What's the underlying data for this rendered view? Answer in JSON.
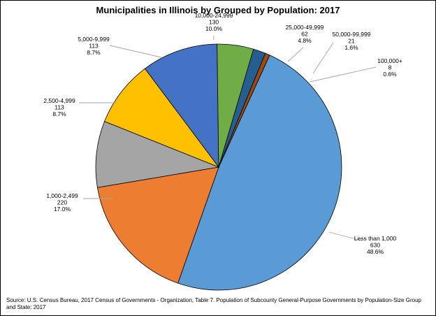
{
  "chart_data": {
    "type": "pie",
    "title": "Municipalities in Illinois by Grouped by Population: 2017",
    "slices": [
      {
        "label": "Less than 1,000",
        "count": "630",
        "percent": "48.6%",
        "value": 630,
        "color": "#5B9BD5"
      },
      {
        "label": "1,000-2,499",
        "count": "220",
        "percent": "17.0%",
        "value": 220,
        "color": "#ED7D31"
      },
      {
        "label": "2,500-4,999",
        "count": "113",
        "percent": "8.7%",
        "value": 113,
        "color": "#A5A5A5"
      },
      {
        "label": "5,000-9,999",
        "count": "113",
        "percent": "8.7%",
        "value": 113,
        "color": "#FFC000"
      },
      {
        "label": "10,000-24,999",
        "count": "130",
        "percent": "10.0%",
        "value": 130,
        "color": "#4472C4"
      },
      {
        "label": "25,000-49,999",
        "count": "62",
        "percent": "4.8%",
        "value": 62,
        "color": "#70AD47"
      },
      {
        "label": "50,000-99,999",
        "count": "21",
        "percent": "1.6%",
        "value": 21,
        "color": "#255E91"
      },
      {
        "label": "100,000+",
        "count": "8",
        "percent": "0.6%",
        "value": 8,
        "color": "#9E480E"
      }
    ],
    "source": "Source: U.S. Census Bureau, 2017 Census of Governments - Organization, Table 7. Population of Subcounty General-Purpose Governments by Population-Size Group and State: 2017"
  }
}
